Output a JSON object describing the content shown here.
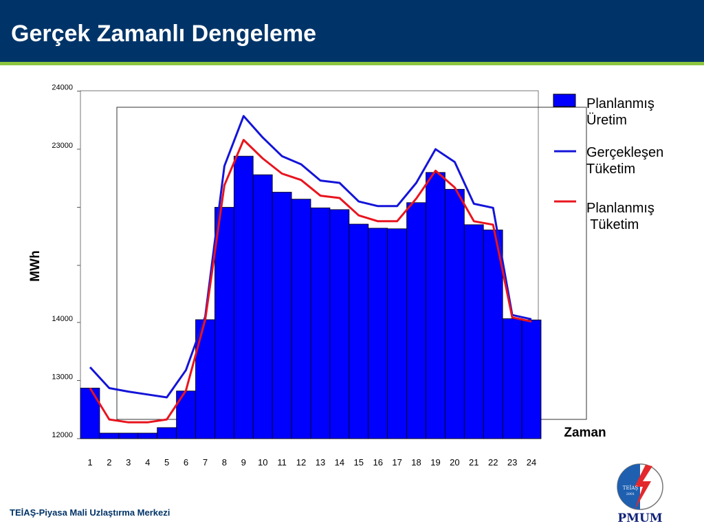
{
  "slide": {
    "title": "Gerçek Zamanlı Dengeleme",
    "footer": "TEİAŞ-Piyasa Mali Uzlaştırma Merkezi",
    "logo": {
      "emblem_text": "TEİAŞ",
      "emblem_year": "2001",
      "wordmark": "PMUM"
    }
  },
  "colors": {
    "title_bar": "#003468",
    "accent_stripe": "#8cc63f",
    "bar_fill": "#0000ff",
    "line_actual": "#1414d8",
    "line_planned": "#e8141e"
  },
  "chart_data": {
    "type": "bar",
    "title": "",
    "xlabel": "Zaman",
    "ylabel": "MWh",
    "categories": [
      "1",
      "2",
      "3",
      "4",
      "5",
      "6",
      "7",
      "8",
      "9",
      "10",
      "11",
      "12",
      "13",
      "14",
      "15",
      "16",
      "17",
      "18",
      "19",
      "20",
      "21",
      "22",
      "23",
      "24"
    ],
    "y_ticks": [
      {
        "label": "24000",
        "pos": 24000
      },
      {
        "label": "23000",
        "pos": 23000
      },
      {
        "label": "",
        "pos": 22000
      },
      {
        "label": "",
        "pos": 21000
      },
      {
        "label": "14000",
        "pos": 14000
      },
      {
        "label": "13000",
        "pos": 13000
      },
      {
        "label": "12000",
        "pos": 12000
      }
    ],
    "ylim": [
      12000,
      24000
    ],
    "series": [
      {
        "name": "Planlanmış Üretim",
        "kind": "bar",
        "values": [
          12870,
          12095,
          12095,
          12095,
          12190,
          12820,
          14340,
          22000,
          22880,
          22560,
          22260,
          22140,
          21990,
          21960,
          21710,
          21640,
          21630,
          22080,
          22600,
          22310,
          21700,
          21610,
          14460,
          14310
        ]
      },
      {
        "name": "Gerçekleşen Tüketim",
        "kind": "line",
        "values": [
          13230,
          12870,
          12810,
          12760,
          12710,
          13180,
          14710,
          22710,
          23570,
          23200,
          22880,
          22740,
          22460,
          22420,
          22100,
          22020,
          22020,
          22420,
          23000,
          22780,
          22060,
          21990,
          14910,
          14400
        ]
      },
      {
        "name": "Planlanmış Tüketim",
        "kind": "line",
        "values": [
          12870,
          12330,
          12280,
          12280,
          12330,
          12830,
          14340,
          22380,
          23160,
          22840,
          22580,
          22470,
          22200,
          22160,
          21860,
          21760,
          21760,
          22150,
          22630,
          22340,
          21760,
          21700,
          14610,
          14110
        ]
      }
    ],
    "legend_position": "right",
    "legend": [
      {
        "line1": "Planlanmış",
        "line2": "Üretim"
      },
      {
        "line1": "Gerçekleşen",
        "line2": "Tüketim"
      },
      {
        "line1": "Planlanmış",
        "line2": " Tüketim"
      }
    ],
    "grid": false
  }
}
